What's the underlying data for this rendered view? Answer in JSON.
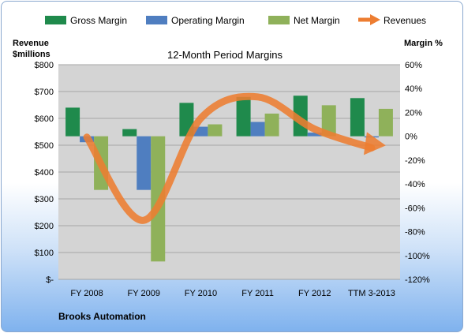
{
  "chart_data": {
    "type": "bar",
    "title": "12-Month Period Margins",
    "company": "Brooks Automation",
    "y_left_label": [
      "Revenue",
      "$millions"
    ],
    "y_right_label": "Margin %",
    "categories": [
      "FY 2008",
      "FY 2009",
      "FY 2010",
      "FY 2011",
      "FY 2012",
      "TTM 3-2013"
    ],
    "y_left_ticks": [
      "$-",
      "$100",
      "$200",
      "$300",
      "$400",
      "$500",
      "$600",
      "$700",
      "$800"
    ],
    "y_left_range": [
      0,
      800
    ],
    "y_right_ticks": [
      "-120%",
      "-100%",
      "-80%",
      "-60%",
      "-40%",
      "-20%",
      "0%",
      "20%",
      "40%",
      "60%"
    ],
    "y_right_range": [
      -120,
      60
    ],
    "series": [
      {
        "name": "Gross Margin",
        "color": "#1f8a4c",
        "values": [
          24,
          6,
          28,
          33,
          34,
          32
        ]
      },
      {
        "name": "Operating Margin",
        "color": "#4f7ec0",
        "values": [
          -5,
          -45,
          8,
          12,
          3,
          -1
        ]
      },
      {
        "name": "Net Margin",
        "color": "#8fb15a",
        "values": [
          -45,
          -105,
          10,
          19,
          26,
          23
        ]
      }
    ],
    "revenues": {
      "name": "Revenues",
      "color": "#ed7d31",
      "values": [
        530,
        220,
        600,
        680,
        560,
        490
      ]
    },
    "legend_position": "top"
  }
}
